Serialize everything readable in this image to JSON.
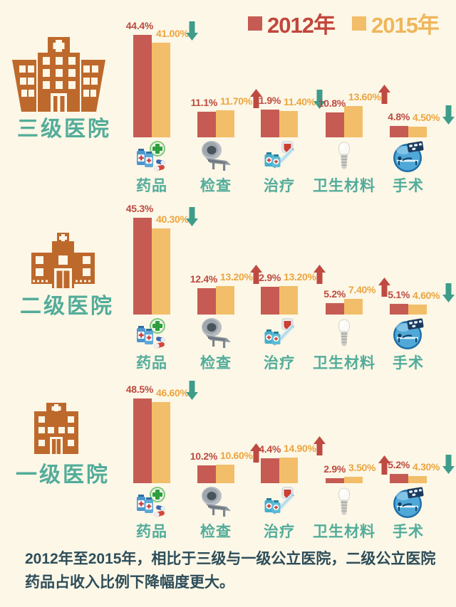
{
  "legend": {
    "items": [
      {
        "label": "2012年",
        "color": "#C65B54"
      },
      {
        "label": "2015年",
        "color": "#F2BE69"
      }
    ]
  },
  "sections": [
    {
      "hospital": "三级医院",
      "categories": [
        {
          "label": "药品",
          "icon": "medicine-icon",
          "v2012": 44.4,
          "v2012_label": "44.4%",
          "v2015": 41.0,
          "v2015_label": "41.00%",
          "trend": "down"
        },
        {
          "label": "检查",
          "icon": "ct-scanner-icon",
          "v2012": 11.1,
          "v2012_label": "11.1%",
          "v2015": 11.7,
          "v2015_label": "11.70%",
          "trend": "up"
        },
        {
          "label": "治疗",
          "icon": "treatment-icon",
          "v2012": 11.9,
          "v2012_label": "11.9%",
          "v2015": 11.4,
          "v2015_label": "11.40%",
          "trend": "down"
        },
        {
          "label": "卫生材料",
          "icon": "implant-icon",
          "v2012": 10.8,
          "v2012_label": "10.8%",
          "v2015": 13.6,
          "v2015_label": "13.60%",
          "trend": "up"
        },
        {
          "label": "手术",
          "icon": "surgery-icon",
          "v2012": 4.8,
          "v2012_label": "4.8%",
          "v2015": 4.5,
          "v2015_label": "4.50%",
          "trend": "down"
        }
      ]
    },
    {
      "hospital": "二级医院",
      "categories": [
        {
          "label": "药品",
          "icon": "medicine-icon",
          "v2012": 45.3,
          "v2012_label": "45.3%",
          "v2015": 40.3,
          "v2015_label": "40.30%",
          "trend": "down"
        },
        {
          "label": "检查",
          "icon": "ct-scanner-icon",
          "v2012": 12.4,
          "v2012_label": "12.4%",
          "v2015": 13.2,
          "v2015_label": "13.20%",
          "trend": "up"
        },
        {
          "label": "治疗",
          "icon": "treatment-icon",
          "v2012": 12.9,
          "v2012_label": "12.9%",
          "v2015": 13.2,
          "v2015_label": "13.20%",
          "trend": "up"
        },
        {
          "label": "卫生材料",
          "icon": "implant-icon",
          "v2012": 5.2,
          "v2012_label": "5.2%",
          "v2015": 7.4,
          "v2015_label": "7.40%",
          "trend": "up"
        },
        {
          "label": "手术",
          "icon": "surgery-icon",
          "v2012": 5.1,
          "v2012_label": "5.1%",
          "v2015": 4.6,
          "v2015_label": "4.60%",
          "trend": "down"
        }
      ]
    },
    {
      "hospital": "一级医院",
      "categories": [
        {
          "label": "药品",
          "icon": "medicine-icon",
          "v2012": 48.5,
          "v2012_label": "48.5%",
          "v2015": 46.6,
          "v2015_label": "46.60%",
          "trend": "down"
        },
        {
          "label": "检查",
          "icon": "ct-scanner-icon",
          "v2012": 10.2,
          "v2012_label": "10.2%",
          "v2015": 10.6,
          "v2015_label": "10.60%",
          "trend": "up"
        },
        {
          "label": "治疗",
          "icon": "treatment-icon",
          "v2012": 14.4,
          "v2012_label": "14.4%",
          "v2015": 14.9,
          "v2015_label": "14.90%",
          "trend": "up"
        },
        {
          "label": "卫生材料",
          "icon": "implant-icon",
          "v2012": 2.9,
          "v2012_label": "2.9%",
          "v2015": 3.5,
          "v2015_label": "3.50%",
          "trend": "up"
        },
        {
          "label": "手术",
          "icon": "surgery-icon",
          "v2012": 5.2,
          "v2012_label": "5.2%",
          "v2015": 4.3,
          "v2015_label": "4.30%",
          "trend": "down"
        }
      ]
    }
  ],
  "footer": "2012年至2015年，相比于三级与一级公立医院，二级公立医院药品占收入比例下降幅度更大。",
  "colors": {
    "background": "#FCF7E7",
    "bar_2012": "#C65B54",
    "bar_2015": "#F2BE69",
    "value_2012_text": "#BC4A40",
    "value_2015_text": "#ECA53F",
    "teal_label": "#53AC9A",
    "hospital_building": "#BE692C",
    "up_arrow": "#BE4A42",
    "down_arrow": "#3E9C8A",
    "footer_text": "#2E4D59"
  },
  "chart_data": [
    {
      "type": "bar",
      "title": "三级医院",
      "categories": [
        "药品",
        "检查",
        "治疗",
        "卫生材料",
        "手术"
      ],
      "series": [
        {
          "name": "2012年",
          "values": [
            44.4,
            11.1,
            11.9,
            10.8,
            4.8
          ]
        },
        {
          "name": "2015年",
          "values": [
            41.0,
            11.7,
            11.4,
            13.6,
            4.5
          ]
        }
      ],
      "trends": [
        "down",
        "up",
        "down",
        "up",
        "down"
      ],
      "xlabel": "",
      "ylabel": "",
      "ylim": [
        0,
        50
      ],
      "grid": false,
      "legend_position": "top-right"
    },
    {
      "type": "bar",
      "title": "二级医院",
      "categories": [
        "药品",
        "检查",
        "治疗",
        "卫生材料",
        "手术"
      ],
      "series": [
        {
          "name": "2012年",
          "values": [
            45.3,
            12.4,
            12.9,
            5.2,
            5.1
          ]
        },
        {
          "name": "2015年",
          "values": [
            40.3,
            13.2,
            13.2,
            7.4,
            4.6
          ]
        }
      ],
      "trends": [
        "down",
        "up",
        "up",
        "up",
        "down"
      ],
      "xlabel": "",
      "ylabel": "",
      "ylim": [
        0,
        50
      ],
      "grid": false,
      "legend_position": "top-right"
    },
    {
      "type": "bar",
      "title": "一级医院",
      "categories": [
        "药品",
        "检查",
        "治疗",
        "卫生材料",
        "手术"
      ],
      "series": [
        {
          "name": "2012年",
          "values": [
            48.5,
            10.2,
            14.4,
            2.9,
            5.2
          ]
        },
        {
          "name": "2015年",
          "values": [
            46.6,
            10.6,
            14.9,
            3.5,
            4.3
          ]
        }
      ],
      "trends": [
        "down",
        "up",
        "up",
        "up",
        "down"
      ],
      "xlabel": "",
      "ylabel": "",
      "ylim": [
        0,
        50
      ],
      "grid": false,
      "legend_position": "top-right"
    }
  ]
}
